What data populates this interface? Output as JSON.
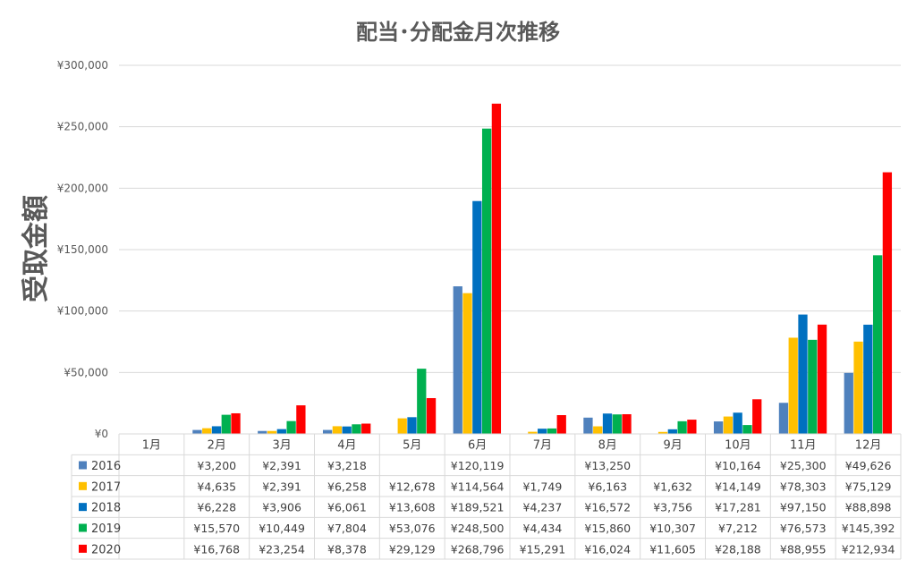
{
  "chart_data": {
    "type": "bar",
    "title": "配当･分配金月次推移",
    "ylabel": "受取金額",
    "xlabel": "",
    "ylim": [
      0,
      300000
    ],
    "y_ticks": [
      0,
      50000,
      100000,
      150000,
      200000,
      250000,
      300000
    ],
    "y_tick_labels": [
      "¥0",
      "¥50,000",
      "¥100,000",
      "¥150,000",
      "¥200,000",
      "¥250,000",
      "¥300,000"
    ],
    "grid": true,
    "legend": "data-table",
    "categories": [
      "1月",
      "2月",
      "3月",
      "4月",
      "5月",
      "6月",
      "7月",
      "8月",
      "9月",
      "10月",
      "11月",
      "12月"
    ],
    "series": [
      {
        "name": "2016",
        "color": "#4F81BD",
        "values": [
          null,
          3200,
          2391,
          3218,
          null,
          120119,
          null,
          13250,
          null,
          10164,
          25300,
          49626
        ],
        "labels": [
          "",
          "¥3,200",
          "¥2,391",
          "¥3,218",
          "",
          "¥120,119",
          "",
          "¥13,250",
          "",
          "¥10,164",
          "¥25,300",
          "¥49,626"
        ]
      },
      {
        "name": "2017",
        "color": "#FFC000",
        "values": [
          null,
          4635,
          2391,
          6258,
          12678,
          114564,
          1749,
          6163,
          1632,
          14149,
          78303,
          75129
        ],
        "labels": [
          "",
          "¥4,635",
          "¥2,391",
          "¥6,258",
          "¥12,678",
          "¥114,564",
          "¥1,749",
          "¥6,163",
          "¥1,632",
          "¥14,149",
          "¥78,303",
          "¥75,129"
        ]
      },
      {
        "name": "2018",
        "color": "#0070C0",
        "values": [
          null,
          6228,
          3906,
          6061,
          13608,
          189521,
          4237,
          16572,
          3756,
          17281,
          97150,
          88898
        ],
        "labels": [
          "",
          "¥6,228",
          "¥3,906",
          "¥6,061",
          "¥13,608",
          "¥189,521",
          "¥4,237",
          "¥16,572",
          "¥3,756",
          "¥17,281",
          "¥97,150",
          "¥88,898"
        ]
      },
      {
        "name": "2019",
        "color": "#00B050",
        "values": [
          null,
          15570,
          10449,
          7804,
          53076,
          248500,
          4434,
          15860,
          10307,
          7212,
          76573,
          145392
        ],
        "labels": [
          "",
          "¥15,570",
          "¥10,449",
          "¥7,804",
          "¥53,076",
          "¥248,500",
          "¥4,434",
          "¥15,860",
          "¥10,307",
          "¥7,212",
          "¥76,573",
          "¥145,392"
        ]
      },
      {
        "name": "2020",
        "color": "#FF0000",
        "values": [
          null,
          16768,
          23254,
          8378,
          29129,
          268796,
          15291,
          16024,
          11605,
          28188,
          88955,
          212934
        ],
        "labels": [
          "",
          "¥16,768",
          "¥23,254",
          "¥8,378",
          "¥29,129",
          "¥268,796",
          "¥15,291",
          "¥16,024",
          "¥11,605",
          "¥28,188",
          "¥88,955",
          "¥212,934"
        ]
      }
    ]
  }
}
